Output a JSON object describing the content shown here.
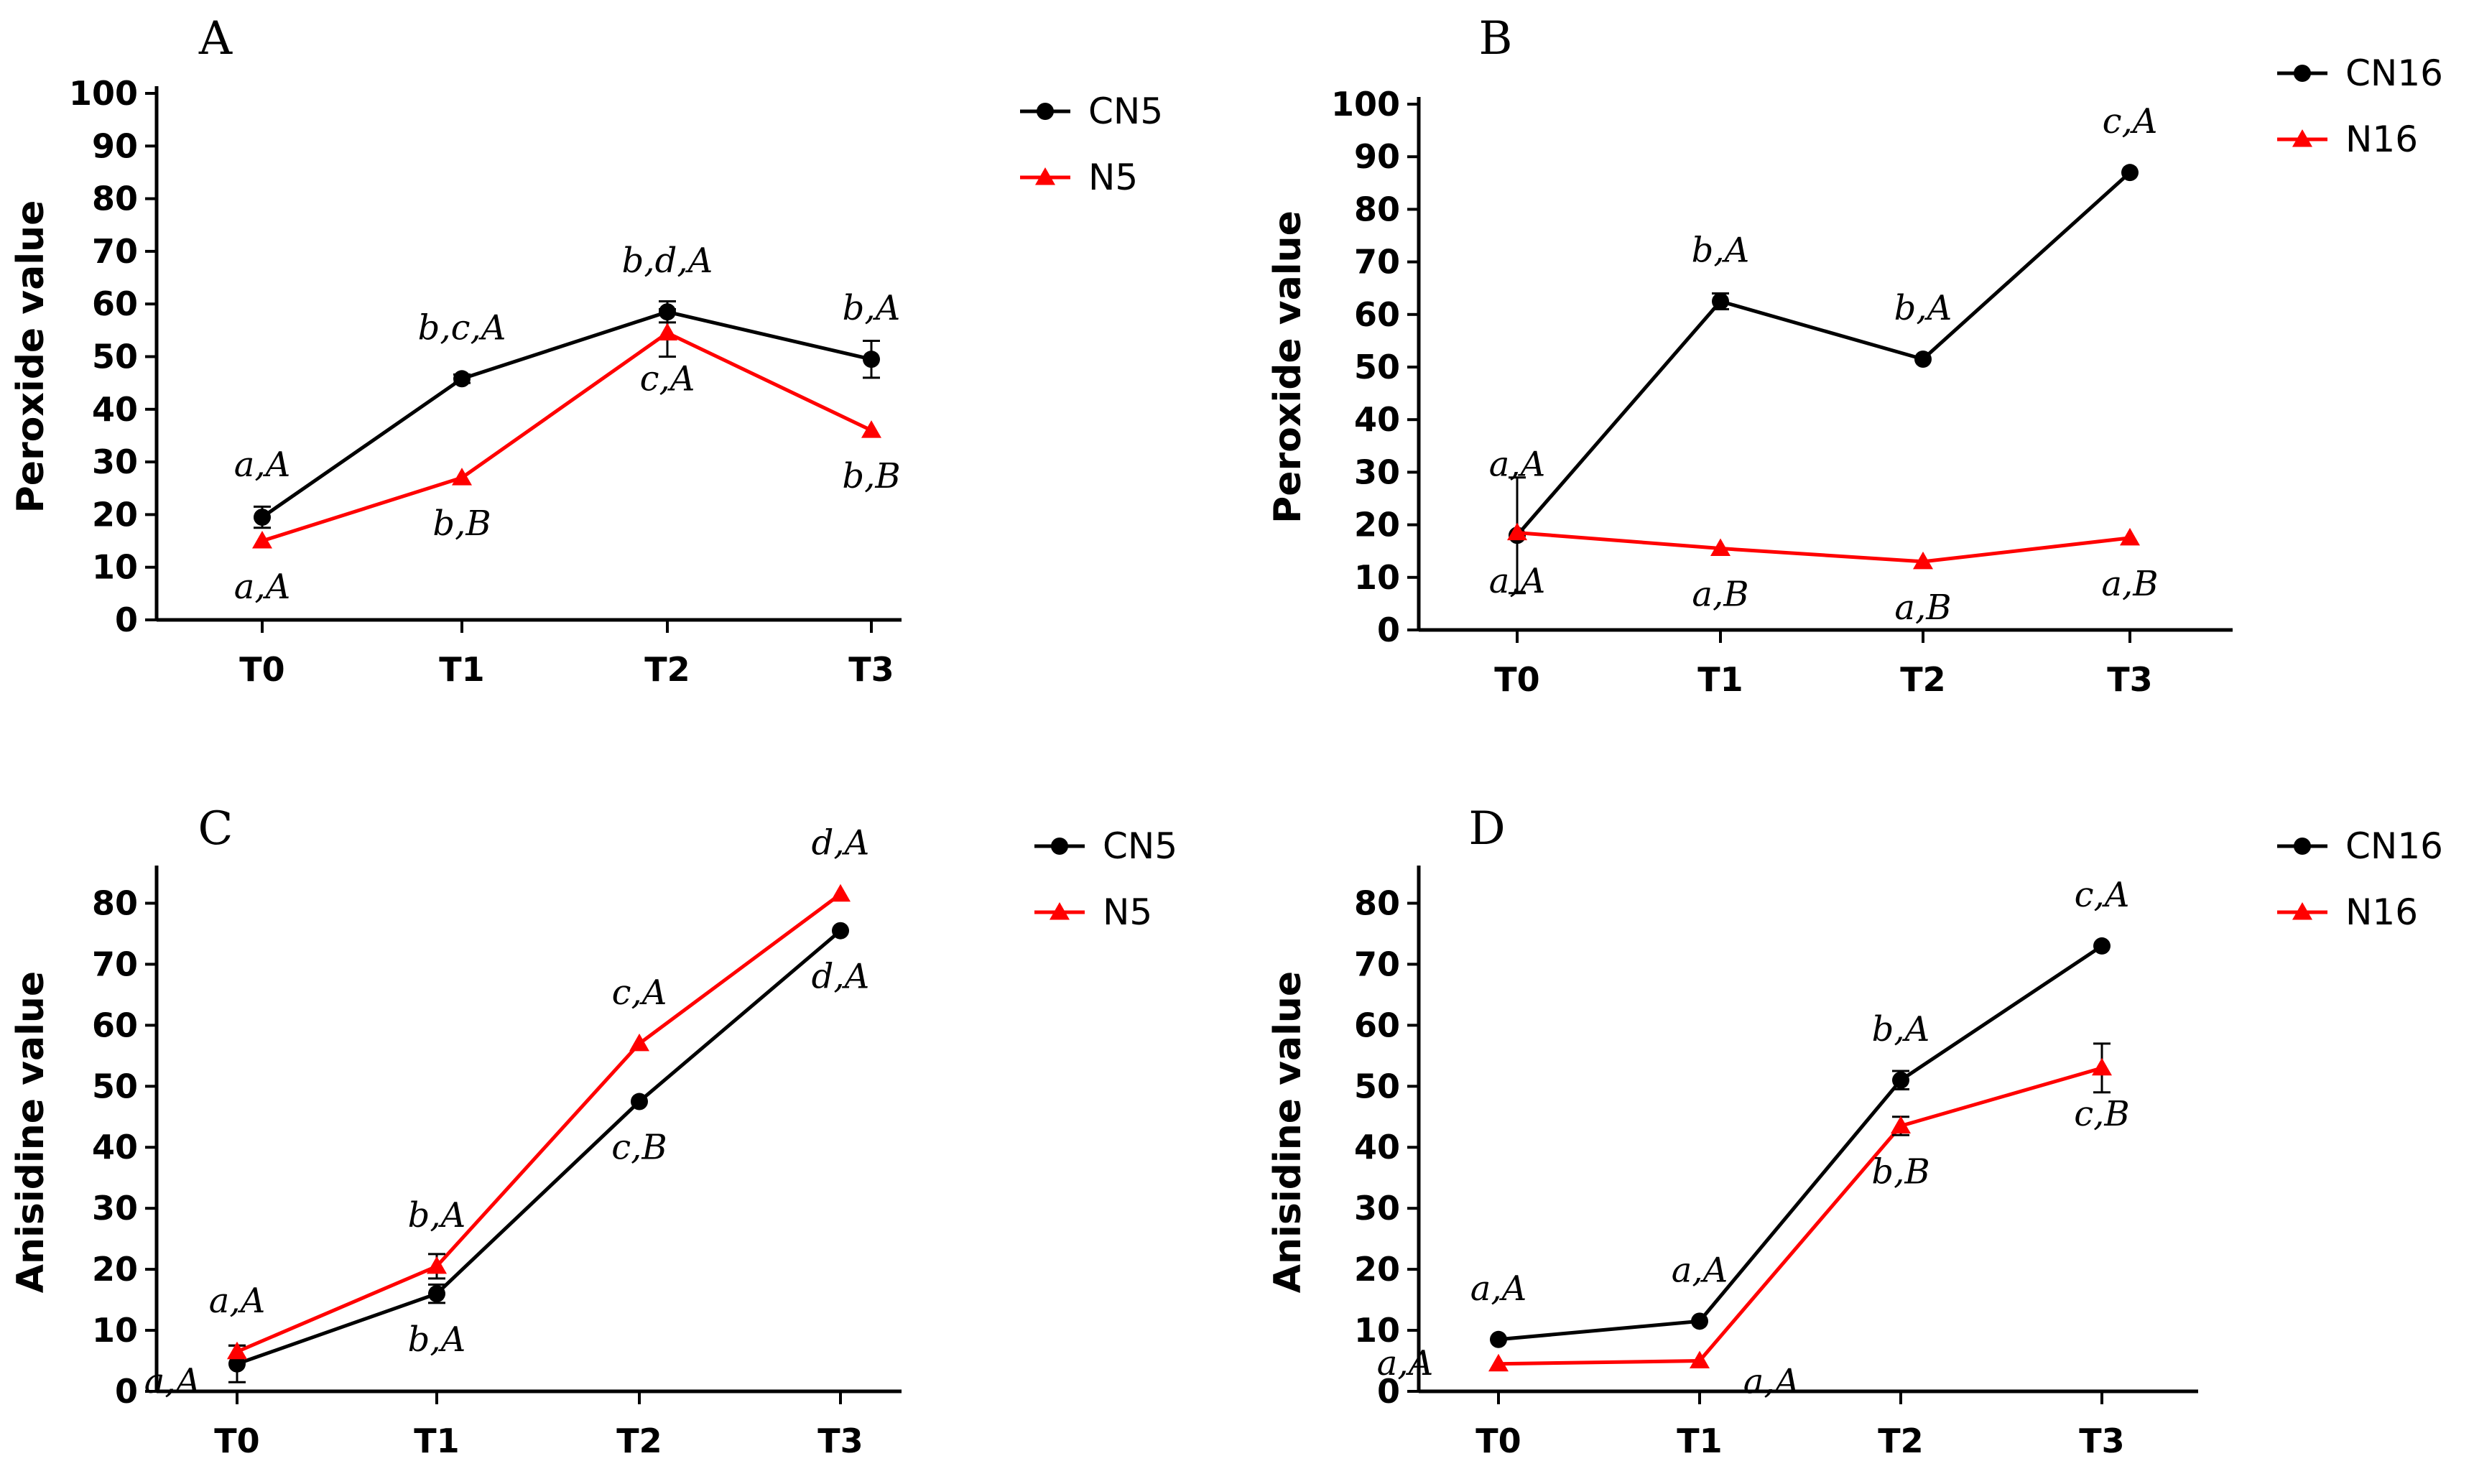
{
  "colors": {
    "black": "#000000",
    "red": "#ff0000"
  },
  "chart_data": [
    {
      "id": "A",
      "type": "line",
      "panel_label": "A",
      "title": "",
      "xlabel": "",
      "ylabel": "Peroxide value",
      "categories": [
        "T0",
        "T1",
        "T2",
        "T3"
      ],
      "ylim": [
        0,
        100
      ],
      "yticks": [
        "0",
        "10",
        "20",
        "30",
        "40",
        "50",
        "60",
        "70",
        "80",
        "90",
        "100"
      ],
      "legend": "top-right",
      "series": [
        {
          "name": "CN5",
          "color": "#000000",
          "marker": "circle",
          "values": [
            19.5,
            45.8,
            58.5,
            49.5
          ],
          "errors": [
            2,
            0.8,
            2,
            3.5
          ],
          "labels": [
            "",
            "b,c,A",
            "b,d,A",
            "b,A"
          ],
          "label_pos": [
            "",
            "above",
            "above",
            "above"
          ]
        },
        {
          "name": "N5",
          "color": "#ff0000",
          "marker": "triangle",
          "values": [
            15,
            27,
            54.5,
            36
          ],
          "errors": [
            0.5,
            0.5,
            4.5,
            0.5
          ],
          "labels": [
            "a,A",
            "b,B",
            "c,A",
            "b,B"
          ],
          "label_pos": [
            "below",
            "below",
            "below",
            "below"
          ]
        }
      ],
      "extra_labels": [
        {
          "text": "a,A",
          "x_index": 0,
          "y": 29.5
        }
      ]
    },
    {
      "id": "B",
      "type": "line",
      "panel_label": "B",
      "title": "",
      "xlabel": "",
      "ylabel": "Peroxide value",
      "categories": [
        "T0",
        "T1",
        "T2",
        "T3"
      ],
      "ylim": [
        0,
        100
      ],
      "yticks": [
        "0",
        "10",
        "20",
        "30",
        "40",
        "50",
        "60",
        "70",
        "80",
        "90",
        "100"
      ],
      "legend": "top-right",
      "series": [
        {
          "name": "CN16",
          "color": "#000000",
          "marker": "circle",
          "values": [
            18,
            62.5,
            51.5,
            87
          ],
          "errors": [
            11,
            1.5,
            0.5,
            0.5
          ],
          "labels": [
            "a,A",
            "b,A",
            "b,A",
            "c,A"
          ],
          "label_pos": [
            "below",
            "above",
            "above",
            "above"
          ]
        },
        {
          "name": "N16",
          "color": "#ff0000",
          "marker": "triangle",
          "values": [
            18.5,
            15.5,
            13,
            17.5
          ],
          "errors": [
            0.5,
            0.5,
            0.5,
            0.5
          ],
          "labels": [
            "",
            "a,B",
            "a,B",
            "a,B"
          ],
          "label_pos": [
            "",
            "below",
            "below",
            "below"
          ]
        }
      ],
      "extra_labels": [
        {
          "text": "a,A",
          "x_index": 0,
          "y": 31.5
        }
      ]
    },
    {
      "id": "C",
      "type": "line",
      "panel_label": "C",
      "title": "",
      "xlabel": "",
      "ylabel": "Anisidine value",
      "categories": [
        "T0",
        "T1",
        "T2",
        "T3"
      ],
      "ylim": [
        0,
        85
      ],
      "yticks": [
        "0",
        "10",
        "20",
        "30",
        "40",
        "50",
        "60",
        "70",
        "80"
      ],
      "legend": "top-right",
      "series": [
        {
          "name": "CN5",
          "color": "#000000",
          "marker": "circle",
          "values": [
            4.5,
            16,
            47.5,
            75.5
          ],
          "errors": [
            3,
            1.5,
            0.5,
            0.5
          ],
          "labels": [
            "a,A",
            "b,A",
            "c,B",
            "d,A"
          ],
          "label_pos": [
            "below-left",
            "below",
            "below",
            "below"
          ]
        },
        {
          "name": "N5",
          "color": "#ff0000",
          "marker": "triangle",
          "values": [
            6.5,
            20.5,
            57,
            81.5
          ],
          "errors": [
            1,
            2,
            0.5,
            0.5
          ],
          "labels": [
            "a,A",
            "b,A",
            "c,A",
            "d,A"
          ],
          "label_pos": [
            "above",
            "above",
            "above",
            "above"
          ]
        }
      ],
      "extra_labels": []
    },
    {
      "id": "D",
      "type": "line",
      "panel_label": "D",
      "title": "",
      "xlabel": "",
      "ylabel": "Anisidine value",
      "categories": [
        "T0",
        "T1",
        "T2",
        "T3"
      ],
      "ylim": [
        0,
        85
      ],
      "yticks": [
        "0",
        "10",
        "20",
        "30",
        "40",
        "50",
        "60",
        "70",
        "80"
      ],
      "legend": "top-right",
      "series": [
        {
          "name": "CN16",
          "color": "#000000",
          "marker": "circle",
          "values": [
            8.5,
            11.5,
            51,
            73
          ],
          "errors": [
            0.5,
            0.5,
            1.5,
            0.5
          ],
          "labels": [
            "a,A",
            "a,A",
            "b,A",
            "c,A"
          ],
          "label_pos": [
            "above",
            "above",
            "above",
            "above"
          ]
        },
        {
          "name": "N16",
          "color": "#ff0000",
          "marker": "triangle",
          "values": [
            4.5,
            5,
            43.5,
            53
          ],
          "errors": [
            0.5,
            0.5,
            1.5,
            4
          ],
          "labels": [
            "a,A",
            "a,A",
            "b,B",
            "c,B"
          ],
          "label_pos": [
            "left",
            "below-right",
            "below",
            "below"
          ]
        }
      ],
      "extra_labels": []
    }
  ]
}
